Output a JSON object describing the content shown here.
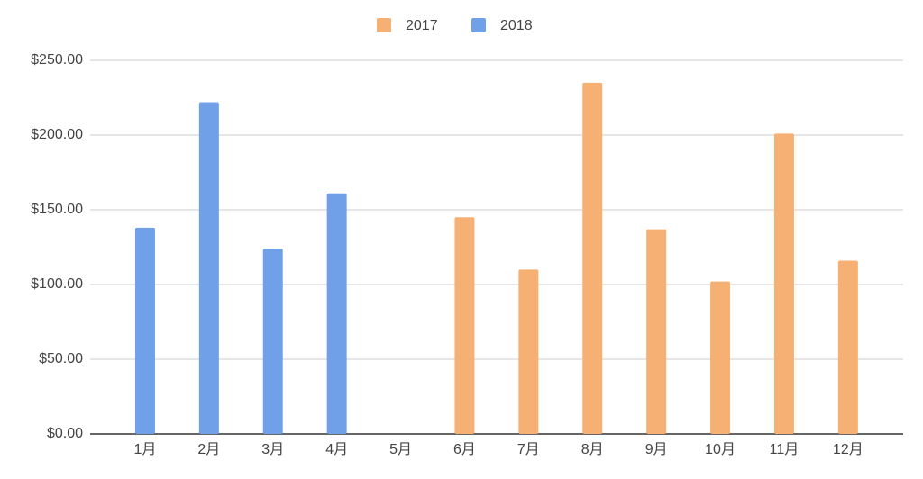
{
  "chart_data": {
    "type": "bar",
    "categories": [
      "1月",
      "2月",
      "3月",
      "4月",
      "5月",
      "6月",
      "7月",
      "8月",
      "9月",
      "10月",
      "11月",
      "12月"
    ],
    "series": [
      {
        "name": "2017",
        "color": "#f6b073",
        "values": [
          null,
          null,
          null,
          null,
          null,
          145,
          110,
          235,
          137,
          102,
          201,
          116
        ]
      },
      {
        "name": "2018",
        "color": "#6fa0e8",
        "values": [
          138,
          222,
          124,
          161,
          null,
          null,
          null,
          null,
          null,
          null,
          null,
          null
        ]
      }
    ],
    "ylim": [
      0,
      250
    ],
    "yticks": [
      {
        "value": 0,
        "label": "$0.00"
      },
      {
        "value": 50,
        "label": "$50.00"
      },
      {
        "value": 100,
        "label": "$100.00"
      },
      {
        "value": 150,
        "label": "$150.00"
      },
      {
        "value": 200,
        "label": "$200.00"
      },
      {
        "value": 250,
        "label": "$250.00"
      }
    ],
    "grid": true,
    "legend": "top"
  }
}
